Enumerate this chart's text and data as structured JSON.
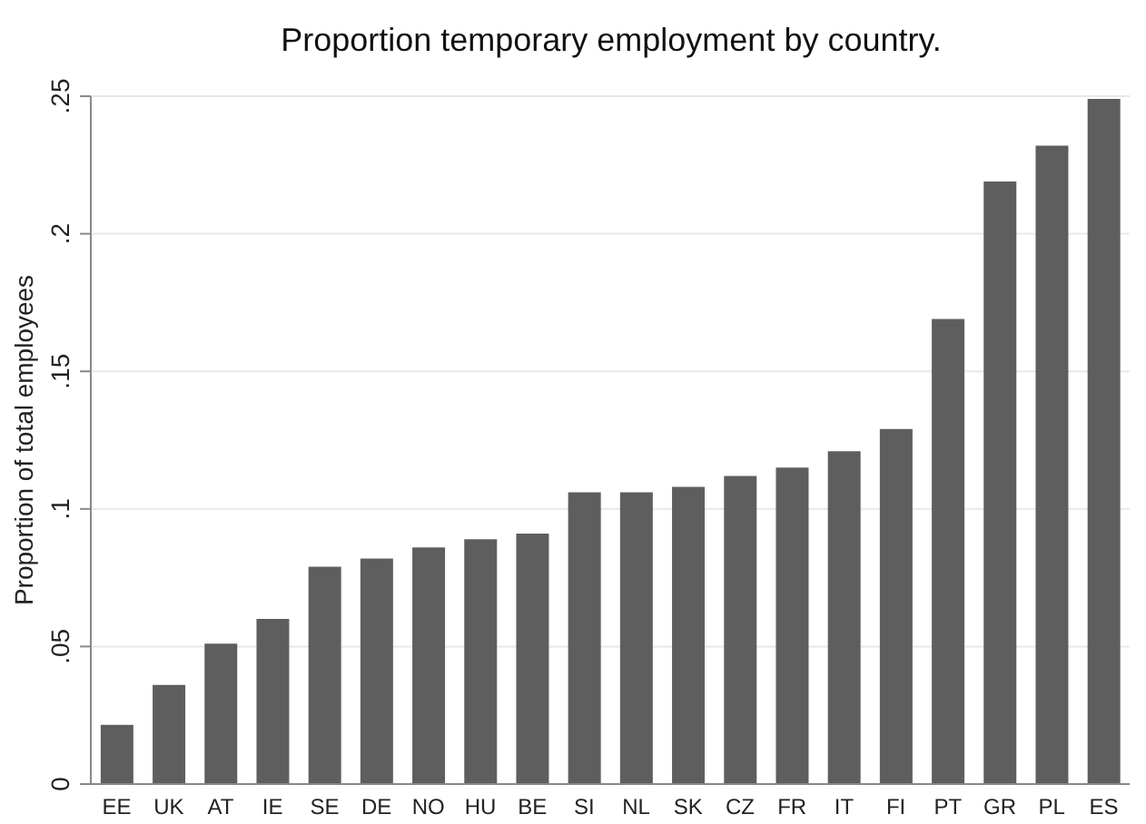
{
  "chart_data": {
    "type": "bar",
    "title": "Proportion temporary employment by country.",
    "ylabel": "Proportion of total employees",
    "categories": [
      "EE",
      "UK",
      "AT",
      "IE",
      "SE",
      "DE",
      "NO",
      "HU",
      "BE",
      "SI",
      "NL",
      "SK",
      "CZ",
      "FR",
      "IT",
      "FI",
      "PT",
      "GR",
      "PL",
      "ES"
    ],
    "values": [
      0.0215,
      0.036,
      0.051,
      0.06,
      0.079,
      0.082,
      0.086,
      0.089,
      0.091,
      0.106,
      0.106,
      0.108,
      0.112,
      0.115,
      0.121,
      0.129,
      0.169,
      0.219,
      0.232,
      0.249
    ],
    "color": "#5e5e5e",
    "ylim": [
      0,
      0.25
    ],
    "yticks": [
      {
        "value": 0,
        "label": "0"
      },
      {
        "value": 0.05,
        "label": ".05"
      },
      {
        "value": 0.1,
        "label": ".1"
      },
      {
        "value": 0.15,
        "label": ".15"
      },
      {
        "value": 0.2,
        "label": ".2"
      },
      {
        "value": 0.25,
        "label": ".25"
      }
    ],
    "grid": "y"
  }
}
